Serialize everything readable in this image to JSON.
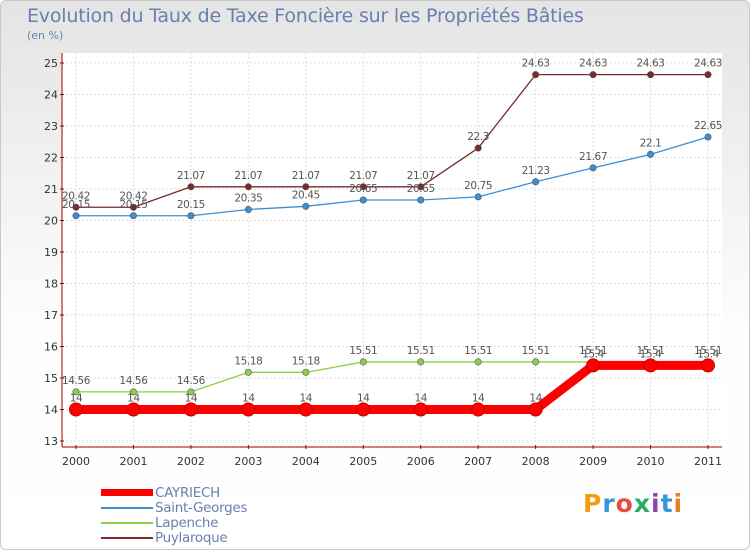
{
  "header": {
    "title": "Evolution du Taux de Taxe Foncière sur les Propriétés Bâties",
    "unit": "(en %)"
  },
  "logo": {
    "letters": [
      "P",
      "r",
      "o",
      "x",
      "i",
      "t",
      "i"
    ],
    "colors": [
      "#f39c12",
      "#3498db",
      "#e74c3c",
      "#27ae60",
      "#8e44ad",
      "#3498db",
      "#e67e22"
    ]
  },
  "chart_data": {
    "type": "line",
    "title": "Evolution du Taux de Taxe Foncière sur les Propriétés Bâties",
    "ylabel": "(en %)",
    "x": [
      2000,
      2001,
      2002,
      2003,
      2004,
      2005,
      2006,
      2007,
      2008,
      2009,
      2010,
      2011
    ],
    "ylim": [
      13,
      25
    ],
    "yticks": [
      13,
      14,
      15,
      16,
      17,
      18,
      19,
      20,
      21,
      22,
      23,
      24,
      25
    ],
    "grid": true,
    "legend": "bottom-left",
    "series": [
      {
        "name": "CAYRIECH",
        "color": "#ff0000",
        "values": [
          14,
          14,
          14,
          14,
          14,
          14,
          14,
          14,
          14,
          15.4,
          15.4,
          15.4
        ],
        "labels": [
          "14",
          "14",
          "14",
          "14",
          "14",
          "14",
          "14",
          "14",
          "14",
          "15.4",
          "15.4",
          "15.4"
        ]
      },
      {
        "name": "Saint-Georges",
        "color": "#3b8fd4",
        "values": [
          20.15,
          20.15,
          20.15,
          20.35,
          20.45,
          20.65,
          20.65,
          20.75,
          21.23,
          21.67,
          22.1,
          22.65
        ],
        "labels": [
          "20.15",
          "20.15",
          "20.15",
          "20.35",
          "20.45",
          "20.65",
          "20.65",
          "20.75",
          "21.23",
          "21.67",
          "22.1",
          "22.65"
        ]
      },
      {
        "name": "Lapenche",
        "color": "#8ad04a",
        "values": [
          14.56,
          14.56,
          14.56,
          15.18,
          15.18,
          15.51,
          15.51,
          15.51,
          15.51,
          15.51,
          15.51,
          15.51
        ],
        "labels": [
          "14.56",
          "14.56",
          "14.56",
          "15.18",
          "15.18",
          "15.51",
          "15.51",
          "15.51",
          "15.51",
          "15.51",
          "15.51",
          "15.51"
        ]
      },
      {
        "name": "Puylaroque",
        "color": "#7a2a2a",
        "values": [
          20.42,
          20.42,
          21.07,
          21.07,
          21.07,
          21.07,
          21.07,
          22.3,
          24.63,
          24.63,
          24.63,
          24.63
        ],
        "labels": [
          "20.42",
          "20.42",
          "21.07",
          "21.07",
          "21.07",
          "21.07",
          "21.07",
          "22.3",
          "24.63",
          "24.63",
          "24.63",
          "24.63"
        ]
      }
    ]
  }
}
